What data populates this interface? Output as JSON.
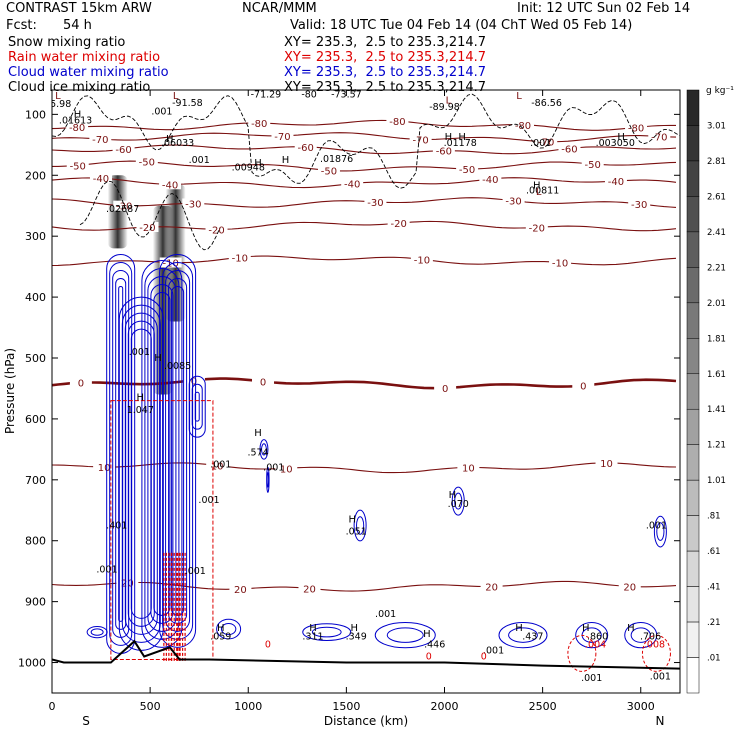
{
  "header": {
    "model": "CONTRAST 15km ARW",
    "org": "NCAR/MMM",
    "init": "Init: 12 UTC Sun 02 Feb 14",
    "fcst_label": "Fcst:",
    "fcst_value": "54 h",
    "valid": "Valid: 18 UTC Tue 04 Feb 14 (04 ChT Wed 05 Feb 14)"
  },
  "colors": {
    "snow": "#000000",
    "rain": "#dd0000",
    "cloud_water": "#0000cc",
    "cloud_ice": "#000000",
    "temperature": "#7a1010",
    "terrain": "#000000"
  },
  "chart_data": {
    "type": "cross-section",
    "xlabel": "Distance (km)",
    "ylabel": "Pressure (hPa)",
    "xlim": [
      0,
      3200
    ],
    "ylim": [
      1050,
      60
    ],
    "x_ticks": [
      0,
      500,
      1000,
      1500,
      2000,
      2500,
      3000
    ],
    "y_ticks": [
      100,
      200,
      300,
      400,
      500,
      600,
      700,
      800,
      900,
      1000
    ],
    "x_end_labels": {
      "left": "S",
      "right": "N"
    },
    "series": [
      {
        "name": "Snow mixing ratio",
        "section": "XY= 235.3,  2.5 to 235.3,214.7"
      },
      {
        "name": "Rain water mixing ratio",
        "section": "XY= 235.3,  2.5 to 235.3,214.7"
      },
      {
        "name": "Cloud water mixing ratio",
        "section": "XY= 235.3,  2.5 to 235.3,214.7"
      },
      {
        "name": "Cloud ice mixing ratio",
        "section": "XY= 235.3,  2.5 to 235.3,214.7"
      }
    ],
    "colorbar": {
      "unit": "g kg⁻¹",
      "levels": [
        "3.01",
        "2.81",
        "2.61",
        "2.41",
        "2.21",
        "2.01",
        "1.81",
        "1.61",
        "1.41",
        "1.21",
        "1.01",
        ".81",
        ".61",
        ".41",
        ".21",
        ".01"
      ]
    },
    "temperature_isotherms": [
      {
        "label": "-80",
        "base_p": 118
      },
      {
        "label": "-70",
        "base_p": 137
      },
      {
        "label": "-60",
        "base_p": 158
      },
      {
        "label": "-50",
        "base_p": 185
      },
      {
        "label": "-40",
        "base_p": 212
      },
      {
        "label": "-30",
        "base_p": 245
      },
      {
        "label": "-20",
        "base_p": 283
      },
      {
        "label": "-10",
        "base_p": 340
      },
      {
        "label": "0",
        "base_p": 542
      },
      {
        "label": "10",
        "base_p": 680
      },
      {
        "label": "20",
        "base_p": 875
      }
    ],
    "terrain_profile": [
      [
        0,
        995
      ],
      [
        60,
        1000
      ],
      [
        300,
        1000
      ],
      [
        420,
        965
      ],
      [
        470,
        990
      ],
      [
        600,
        975
      ],
      [
        650,
        995
      ],
      [
        800,
        995
      ],
      [
        1500,
        1000
      ],
      [
        2000,
        1000
      ],
      [
        2500,
        1005
      ],
      [
        3200,
        1010
      ]
    ],
    "snow_shafts": [
      {
        "x": 335,
        "top": 200,
        "bottom": 320
      },
      {
        "x": 565,
        "top": 250,
        "bottom": 560
      },
      {
        "x": 630,
        "top": 215,
        "bottom": 440
      }
    ],
    "annotations": [
      {
        "text": "-71.29",
        "x": 1090,
        "p": 72
      },
      {
        "text": "-80",
        "x": 1310,
        "p": 72
      },
      {
        "text": "-73.57",
        "x": 1500,
        "p": 72
      },
      {
        "text": "-91.58",
        "x": 690,
        "p": 86
      },
      {
        "text": "-89.98",
        "x": 2000,
        "p": 93
      },
      {
        "text": "-86.56",
        "x": 2520,
        "p": 86
      },
      {
        "text": "-85.98",
        "x": 20,
        "p": 88
      },
      {
        "text": ".001",
        "x": 560,
        "p": 100
      },
      {
        "text": ".01613",
        "x": 120,
        "p": 115
      },
      {
        "text": ".06033",
        "x": 640,
        "p": 152
      },
      {
        "text": ".01178",
        "x": 2080,
        "p": 152
      },
      {
        "text": ".01876",
        "x": 1450,
        "p": 178
      },
      {
        "text": ".001",
        "x": 2490,
        "p": 152
      },
      {
        "text": ".003050",
        "x": 2870,
        "p": 152
      },
      {
        "text": ".00948",
        "x": 1000,
        "p": 192
      },
      {
        "text": ".001",
        "x": 750,
        "p": 180
      },
      {
        "text": ".02687",
        "x": 360,
        "p": 260
      },
      {
        "text": ".00811",
        "x": 2500,
        "p": 230
      },
      {
        "text": ".001",
        "x": 445,
        "p": 495
      },
      {
        "text": ".0085",
        "x": 640,
        "p": 518
      },
      {
        "text": "1.047",
        "x": 450,
        "p": 590
      },
      {
        "text": ".574",
        "x": 1050,
        "p": 660
      },
      {
        "text": ".001",
        "x": 860,
        "p": 680
      },
      {
        "text": ".001",
        "x": 1130,
        "p": 685
      },
      {
        "text": ".001",
        "x": 800,
        "p": 738
      },
      {
        "text": ".401",
        "x": 330,
        "p": 780
      },
      {
        "text": ".051",
        "x": 1550,
        "p": 790
      },
      {
        "text": ".070",
        "x": 2070,
        "p": 745
      },
      {
        "text": ".001",
        "x": 3080,
        "p": 780
      },
      {
        "text": ".001",
        "x": 280,
        "p": 852
      },
      {
        "text": ".001",
        "x": 730,
        "p": 855
      },
      {
        "text": ".059",
        "x": 860,
        "p": 962
      },
      {
        "text": ".311",
        "x": 1330,
        "p": 962
      },
      {
        "text": ".349",
        "x": 1550,
        "p": 962
      },
      {
        "text": ".001",
        "x": 1700,
        "p": 925
      },
      {
        "text": ".446",
        "x": 1950,
        "p": 975
      },
      {
        "text": ".437",
        "x": 2450,
        "p": 962
      },
      {
        "text": ".860",
        "x": 2780,
        "p": 962
      },
      {
        "text": ".706",
        "x": 3050,
        "p": 962
      },
      {
        "text": ".001",
        "x": 2250,
        "p": 985
      },
      {
        "text": ".001",
        "x": 2750,
        "p": 1030
      },
      {
        "text": ".001",
        "x": 3100,
        "p": 1028
      }
    ],
    "rain_annotations": [
      {
        "text": "0",
        "x": 1100,
        "p": 975
      },
      {
        "text": "0",
        "x": 1920,
        "p": 995
      },
      {
        "text": "0",
        "x": 2200,
        "p": 995
      },
      {
        "text": ".004",
        "x": 2770,
        "p": 975
      },
      {
        "text": ".008",
        "x": 3070,
        "p": 975
      }
    ],
    "h_markers": [
      {
        "x": 130,
        "p": 105
      },
      {
        "x": 600,
        "p": 145
      },
      {
        "x": 1190,
        "p": 180
      },
      {
        "x": 2020,
        "p": 142
      },
      {
        "x": 2090,
        "p": 142
      },
      {
        "x": 2900,
        "p": 142
      },
      {
        "x": 1050,
        "p": 185
      },
      {
        "x": 2470,
        "p": 222
      },
      {
        "x": 540,
        "p": 505
      },
      {
        "x": 1050,
        "p": 628
      },
      {
        "x": 2040,
        "p": 730
      },
      {
        "x": 1530,
        "p": 770
      },
      {
        "x": 860,
        "p": 948
      },
      {
        "x": 1330,
        "p": 948
      },
      {
        "x": 1540,
        "p": 948
      },
      {
        "x": 1910,
        "p": 958
      },
      {
        "x": 2380,
        "p": 948
      },
      {
        "x": 2720,
        "p": 948
      },
      {
        "x": 2950,
        "p": 948
      },
      {
        "x": 450,
        "p": 570
      }
    ],
    "l_markers": [
      {
        "x": 30,
        "p": 75
      },
      {
        "x": 630,
        "p": 75
      },
      {
        "x": 2020,
        "p": 82
      },
      {
        "x": 2380,
        "p": 75
      },
      {
        "x": 2480,
        "p": 232
      }
    ]
  }
}
